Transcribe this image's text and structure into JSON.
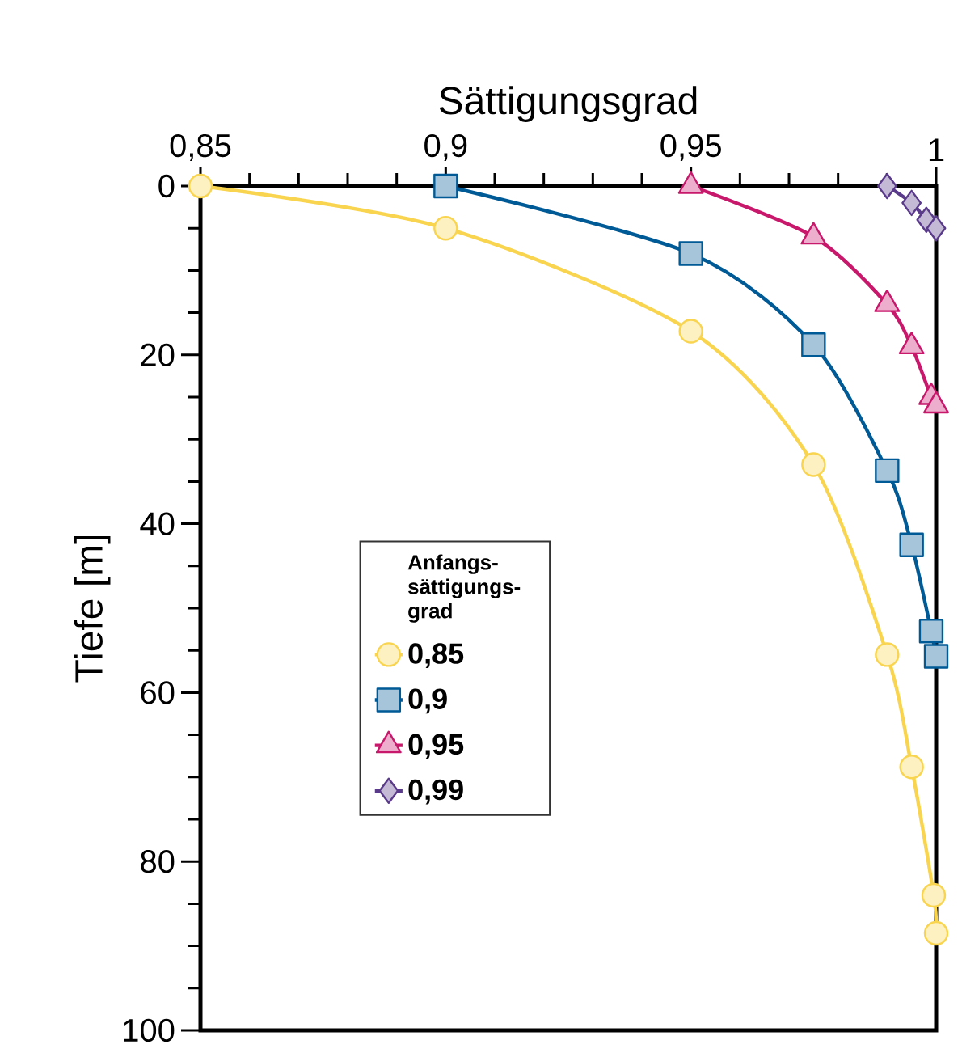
{
  "chart_data": {
    "type": "line",
    "xlabel": "Sättigungsgrad",
    "ylabel": "Tiefe  [m]",
    "legend_title": "Anfangs-sättigungs-grad",
    "xlim": [
      0.85,
      1.0
    ],
    "xticks": [
      {
        "value": 0.85,
        "label": "0,85"
      },
      {
        "value": 0.9,
        "label": "0,9"
      },
      {
        "value": 0.95,
        "label": "0,95"
      },
      {
        "value": 1.0,
        "label": "1"
      }
    ],
    "ylim": [
      100,
      0
    ],
    "yticks": [
      0,
      20,
      40,
      60,
      80,
      100
    ],
    "legend": "center left",
    "grid": false,
    "series": [
      {
        "name": "0,85",
        "color": "#f9d44e",
        "marker": "circle",
        "x": [
          0.85,
          0.9,
          0.95,
          0.975,
          0.99,
          0.995,
          0.9995,
          1.0
        ],
        "values": [
          0,
          5,
          17.2,
          33,
          55.5,
          68.8,
          84,
          88.5
        ]
      },
      {
        "name": "0,9",
        "color": "#005a96",
        "marker": "square",
        "x": [
          0.9,
          0.95,
          0.975,
          0.99,
          0.995,
          0.999,
          1.0
        ],
        "values": [
          0,
          8,
          18.8,
          33.7,
          42.5,
          52.7,
          55.7
        ]
      },
      {
        "name": "0,95",
        "color": "#c8186c",
        "marker": "triangle",
        "x": [
          0.95,
          0.975,
          0.99,
          0.995,
          0.999,
          1.0
        ],
        "values": [
          0,
          6,
          14,
          19,
          25,
          26
        ]
      },
      {
        "name": "0,99",
        "color": "#5a3a8a",
        "marker": "diamond",
        "x": [
          0.99,
          0.995,
          0.998,
          1.0
        ],
        "values": [
          0,
          2,
          4,
          5
        ]
      }
    ]
  }
}
